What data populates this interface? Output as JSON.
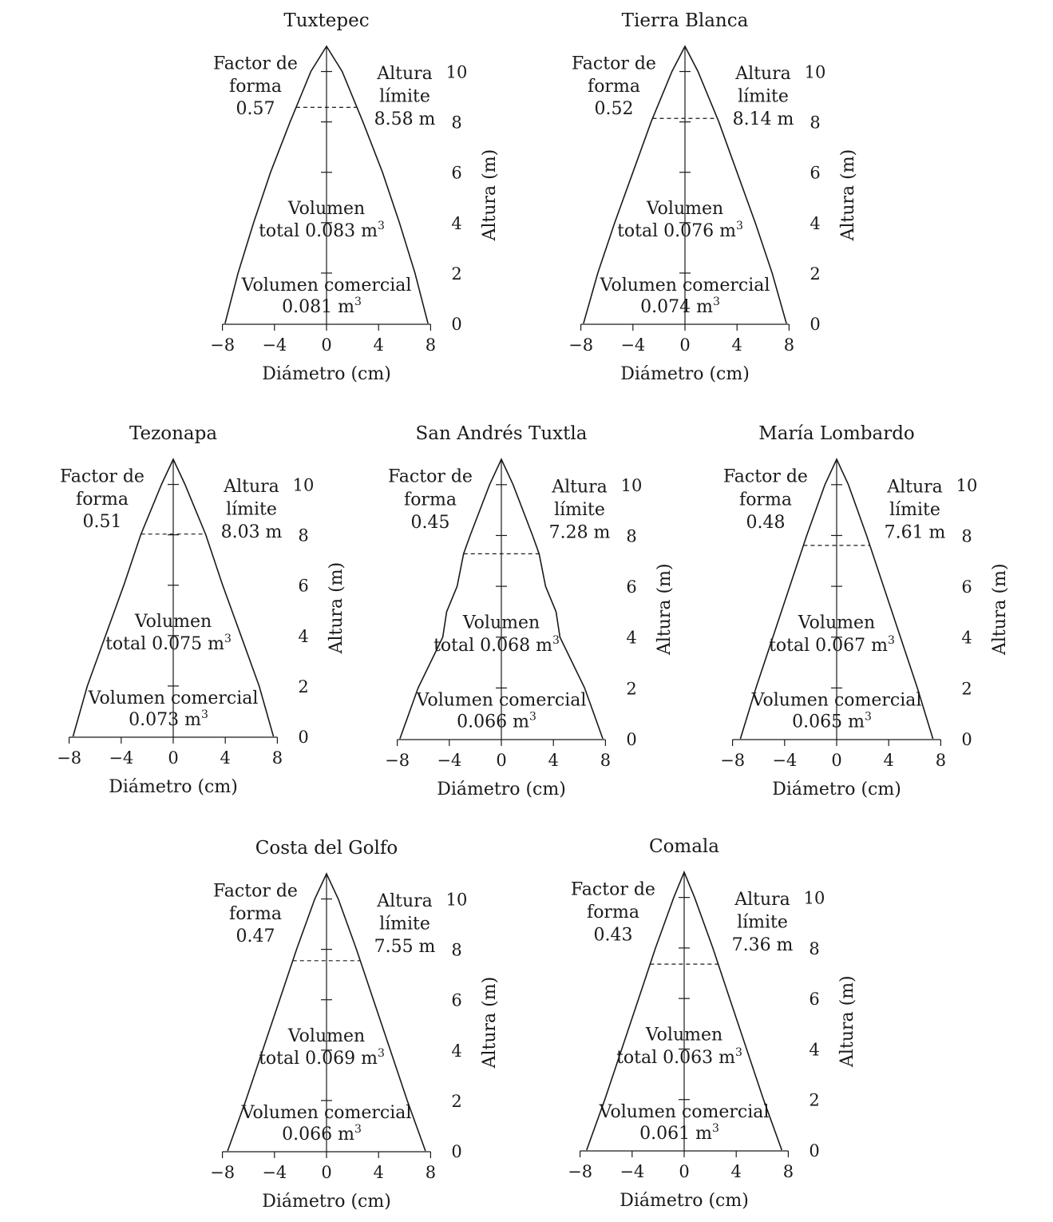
{
  "chart_data": [
    {
      "type": "line",
      "title": "Tuxtepec",
      "xlabel": "Diámetro (cm)",
      "ylabel": "Altura (m)",
      "x_ticks": [
        "−8",
        "−4",
        "0",
        "4",
        "8"
      ],
      "y_ticks": [
        "0",
        "2",
        "4",
        "6",
        "8",
        "10"
      ],
      "xlim": [
        -8,
        8
      ],
      "ylim": [
        0,
        11
      ],
      "profile": {
        "h": [
          0,
          2,
          4,
          6,
          8,
          10,
          11
        ],
        "d": [
          7.8,
          6.8,
          5.6,
          4.3,
          2.8,
          1.2,
          0
        ]
      },
      "factor_label": [
        "Factor de",
        "forma"
      ],
      "factor_value": "0.57",
      "altura_label": [
        "Altura",
        "límite"
      ],
      "altura_value": "8.58 m",
      "altura_limite": 8.58,
      "vol_total_label": [
        "Volumen",
        "total 0.083 m"
      ],
      "vol_comercial_label": [
        "Volumen comercial",
        "0.081 m"
      ],
      "superscript": "3"
    },
    {
      "type": "line",
      "title": "Tierra Blanca",
      "xlabel": "Diámetro (cm)",
      "ylabel": "Altura (m)",
      "x_ticks": [
        "−8",
        "−4",
        "0",
        "4",
        "8"
      ],
      "y_ticks": [
        "0",
        "2",
        "4",
        "6",
        "8",
        "10"
      ],
      "xlim": [
        -8,
        8
      ],
      "ylim": [
        0,
        11
      ],
      "profile": {
        "h": [
          0,
          2,
          4,
          6,
          8,
          10,
          11
        ],
        "d": [
          7.8,
          6.7,
          5.4,
          4.0,
          2.6,
          1.0,
          0
        ]
      },
      "factor_label": [
        "Factor de",
        "forma"
      ],
      "factor_value": "0.52",
      "altura_label": [
        "Altura",
        "límite"
      ],
      "altura_value": "8.14 m",
      "altura_limite": 8.14,
      "vol_total_label": [
        "Volumen",
        "total 0.076 m"
      ],
      "vol_comercial_label": [
        "Volumen comercial",
        "0.074 m"
      ],
      "superscript": "3"
    },
    {
      "type": "line",
      "title": "Tezonapa",
      "xlabel": "Diámetro (cm)",
      "ylabel": "Altura (m)",
      "x_ticks": [
        "−8",
        "−4",
        "0",
        "4",
        "8"
      ],
      "y_ticks": [
        "0",
        "2",
        "4",
        "6",
        "8",
        "10"
      ],
      "xlim": [
        -8,
        8
      ],
      "ylim": [
        0,
        11
      ],
      "profile": {
        "h": [
          0,
          2,
          4,
          6,
          8,
          10,
          11
        ],
        "d": [
          7.7,
          6.6,
          5.2,
          3.8,
          2.5,
          0.9,
          0
        ]
      },
      "factor_label": [
        "Factor de",
        "forma"
      ],
      "factor_value": "0.51",
      "altura_label": [
        "Altura",
        "límite"
      ],
      "altura_value": "8.03 m",
      "altura_limite": 8.03,
      "vol_total_label": [
        "Volumen",
        "total 0.075 m"
      ],
      "vol_comercial_label": [
        "Volumen comercial",
        "0.073 m"
      ],
      "superscript": "3"
    },
    {
      "type": "line",
      "title": "San Andrés Tuxtla",
      "xlabel": "Diámetro (cm)",
      "ylabel": "Altura (m)",
      "x_ticks": [
        "−8",
        "−4",
        "0",
        "4",
        "8"
      ],
      "y_ticks": [
        "0",
        "2",
        "4",
        "6",
        "8",
        "10"
      ],
      "xlim": [
        -8,
        8
      ],
      "ylim": [
        0,
        11
      ],
      "profile": {
        "h": [
          0,
          2,
          4,
          5,
          6,
          7.28,
          8,
          10,
          11
        ],
        "d": [
          7.8,
          6.4,
          4.5,
          4.2,
          3.4,
          2.9,
          2.4,
          0.9,
          0
        ]
      },
      "factor_label": [
        "Factor de",
        "forma"
      ],
      "factor_value": "0.45",
      "altura_label": [
        "Altura",
        "límite"
      ],
      "altura_value": "7.28 m",
      "altura_limite": 7.28,
      "vol_total_label": [
        "Volumen",
        "total 0.068 m"
      ],
      "vol_comercial_label": [
        "Volumen comercial",
        "0.066 m"
      ],
      "superscript": "3"
    },
    {
      "type": "line",
      "title": "María Lombardo",
      "xlabel": "Diámetro (cm)",
      "ylabel": "Altura (m)",
      "x_ticks": [
        "−8",
        "−4",
        "0",
        "4",
        "8"
      ],
      "y_ticks": [
        "0",
        "2",
        "4",
        "6",
        "8",
        "10"
      ],
      "xlim": [
        -8,
        8
      ],
      "ylim": [
        0,
        11
      ],
      "profile": {
        "h": [
          0,
          2,
          4,
          6,
          8,
          10,
          11
        ],
        "d": [
          7.4,
          6.2,
          4.9,
          3.6,
          2.3,
          0.9,
          0
        ]
      },
      "factor_label": [
        "Factor de",
        "forma"
      ],
      "factor_value": "0.48",
      "altura_label": [
        "Altura",
        "límite"
      ],
      "altura_value": "7.61 m",
      "altura_limite": 7.61,
      "vol_total_label": [
        "Volumen",
        "total 0.067 m"
      ],
      "vol_comercial_label": [
        "Volumen comercial",
        "0.065 m"
      ],
      "superscript": "3"
    },
    {
      "type": "line",
      "title": "Costa del Golfo",
      "xlabel": "Diámetro (cm)",
      "ylabel": "Altura (m)",
      "x_ticks": [
        "−8",
        "−4",
        "0",
        "4",
        "8"
      ],
      "y_ticks": [
        "0",
        "2",
        "4",
        "6",
        "8",
        "10"
      ],
      "xlim": [
        -8,
        8
      ],
      "ylim": [
        0,
        11
      ],
      "profile": {
        "h": [
          0,
          2,
          4,
          6,
          8,
          10,
          11
        ],
        "d": [
          7.6,
          6.2,
          4.9,
          3.6,
          2.3,
          0.9,
          0
        ]
      },
      "factor_label": [
        "Factor de",
        "forma"
      ],
      "factor_value": "0.47",
      "altura_label": [
        "Altura",
        "límite"
      ],
      "altura_value": "7.55 m",
      "altura_limite": 7.55,
      "vol_total_label": [
        "Volumen",
        "total 0.069 m"
      ],
      "vol_comercial_label": [
        "Volumen comercial",
        "0.066 m"
      ],
      "superscript": "3"
    },
    {
      "type": "line",
      "title": "Comala",
      "xlabel": "Diámetro (cm)",
      "ylabel": "Altura (m)",
      "x_ticks": [
        "−8",
        "−4",
        "0",
        "4",
        "8"
      ],
      "y_ticks": [
        "0",
        "2",
        "4",
        "6",
        "8",
        "10"
      ],
      "xlim": [
        -8,
        8
      ],
      "ylim": [
        0,
        11
      ],
      "profile": {
        "h": [
          0,
          2,
          4,
          6,
          8,
          10,
          11
        ],
        "d": [
          7.5,
          6.1,
          4.8,
          3.5,
          2.2,
          0.8,
          0
        ]
      },
      "factor_label": [
        "Factor de",
        "forma"
      ],
      "factor_value": "0.43",
      "altura_label": [
        "Altura",
        "límite"
      ],
      "altura_value": "7.36 m",
      "altura_limite": 7.36,
      "vol_total_label": [
        "Volumen",
        "total 0.063 m"
      ],
      "vol_comercial_label": [
        "Volumen comercial",
        "0.061 m"
      ],
      "superscript": "3"
    }
  ]
}
